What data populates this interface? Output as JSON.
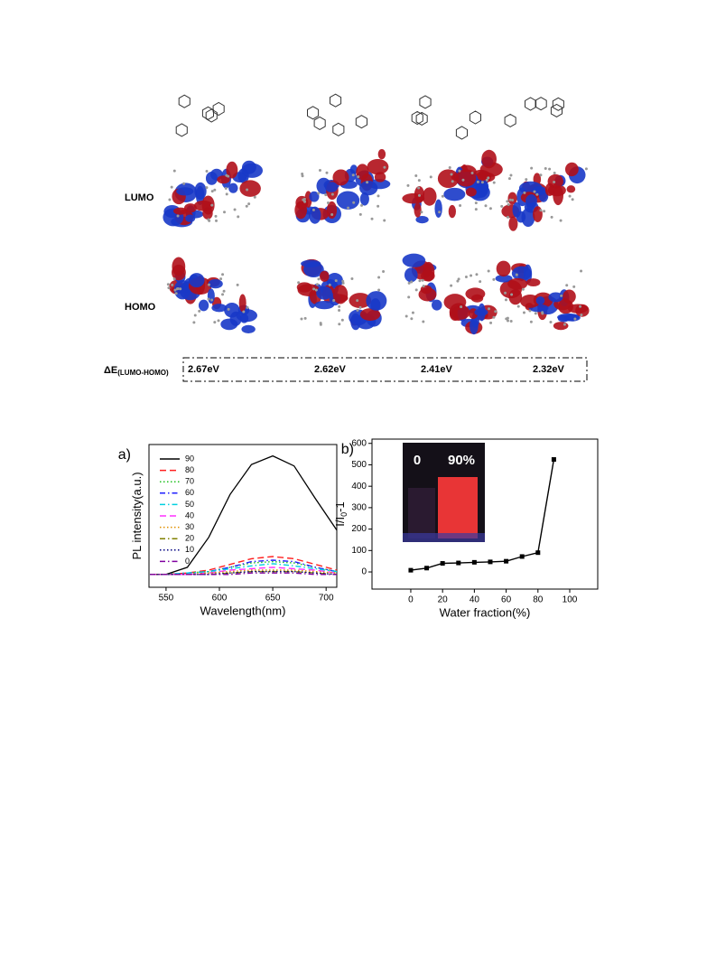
{
  "figure": {
    "rows": [
      {
        "label": "LUMO"
      },
      {
        "label": "HOMO"
      }
    ],
    "gap": {
      "label": "ΔE",
      "subscript": "(LUMO-HOMO)",
      "values": [
        "2.67eV",
        "2.62eV",
        "2.41eV",
        "2.32eV"
      ]
    }
  },
  "chart_data": [
    {
      "type": "line",
      "panel_label": "a)",
      "x_label": "Wavelength(nm)",
      "y_label": "PL intensity(a.u.)",
      "x": [
        535,
        550,
        570,
        590,
        610,
        630,
        650,
        670,
        690,
        710
      ],
      "xlim": [
        534,
        710
      ],
      "xticks": [
        550,
        600,
        650,
        700
      ],
      "ylim": [
        0,
        100
      ],
      "legend": "upper left",
      "series": [
        {
          "name": "90",
          "color": "#000000",
          "dash": "solid",
          "values": [
            9,
            9,
            14,
            35,
            65,
            86,
            92,
            85,
            62,
            40
          ]
        },
        {
          "name": "80",
          "color": "#ff2020",
          "dash": "dashed",
          "values": [
            9,
            9,
            10,
            12,
            16,
            20,
            21.5,
            20,
            16,
            12
          ]
        },
        {
          "name": "70",
          "color": "#20c020",
          "dash": "dotted",
          "values": [
            9,
            9,
            10,
            11,
            14,
            17,
            18,
            17,
            14,
            11
          ]
        },
        {
          "name": "60",
          "color": "#2020ff",
          "dash": "dashdot",
          "values": [
            9,
            9,
            10,
            11,
            14,
            18,
            19,
            18,
            14,
            11
          ]
        },
        {
          "name": "50",
          "color": "#00d0e0",
          "dash": "dashdot",
          "values": [
            9,
            9,
            10,
            11,
            13,
            15,
            16.5,
            15,
            13,
            11
          ]
        },
        {
          "name": "40",
          "color": "#ff30ff",
          "dash": "dashed",
          "values": [
            9,
            9,
            9,
            10,
            12,
            13,
            14,
            13,
            12,
            10
          ]
        },
        {
          "name": "30",
          "color": "#e09000",
          "dash": "dotted",
          "values": [
            9,
            9,
            9,
            10,
            11,
            12,
            12,
            12,
            11,
            10
          ]
        },
        {
          "name": "20",
          "color": "#808000",
          "dash": "dashdot",
          "values": [
            9,
            9,
            9,
            9,
            10,
            11,
            11,
            11,
            10,
            9
          ]
        },
        {
          "name": "10",
          "color": "#000080",
          "dash": "dotted",
          "values": [
            9,
            9,
            9,
            9,
            10,
            11,
            11,
            11,
            10,
            9
          ]
        },
        {
          "name": "0",
          "color": "#8000a0",
          "dash": "dashdot",
          "values": [
            9,
            9,
            9,
            9,
            9,
            10,
            10,
            10,
            9,
            9
          ]
        }
      ]
    },
    {
      "type": "line",
      "marker": "square",
      "panel_label": "b)",
      "x_label": "Water fraction(%)",
      "y_label": "I/I",
      "y_label_sub": "0",
      "y_label_tail": "-1",
      "inset_labels": [
        "0",
        "90%"
      ],
      "x": [
        0,
        10,
        20,
        30,
        40,
        50,
        60,
        70,
        80,
        90
      ],
      "xlim": [
        -24.4,
        117.6
      ],
      "xticks": [
        0,
        20,
        40,
        60,
        80,
        100
      ],
      "ylim": [
        -80,
        620
      ],
      "yticks": [
        0,
        100,
        200,
        300,
        400,
        500,
        600
      ],
      "series": [
        {
          "color": "#000000",
          "values": [
            8,
            18,
            40,
            42,
            45,
            47,
            50,
            72,
            90,
            525
          ]
        }
      ]
    }
  ]
}
